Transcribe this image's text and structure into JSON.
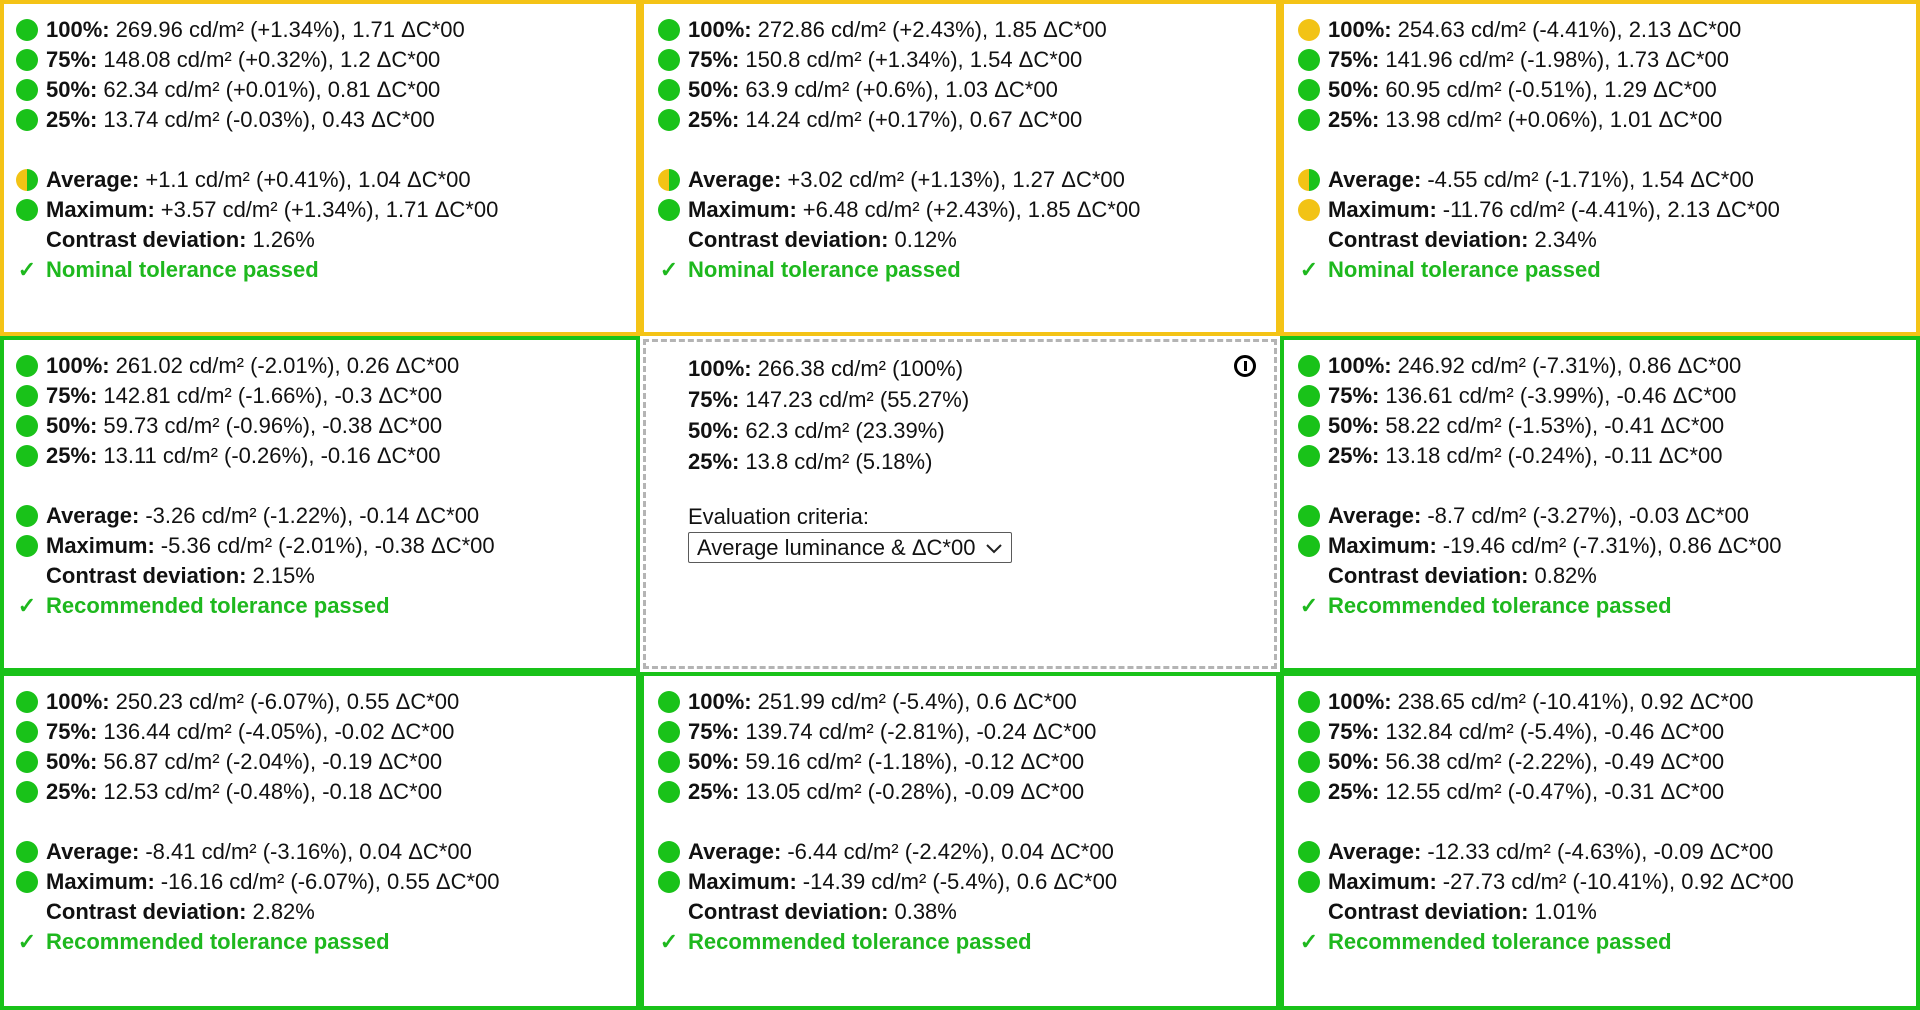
{
  "colors": {
    "green": "#19c219",
    "yellow": "#f2c315",
    "pass_text": "#1eb81e",
    "reference_border": "#b4b4b4"
  },
  "cells": [
    {
      "status": "warn",
      "lines": [
        {
          "dot": "green",
          "label": "100%:",
          "value": "269.96 cd/m² (+1.34%), 1.71 ΔC*00"
        },
        {
          "dot": "green",
          "label": "75%:",
          "value": "148.08 cd/m² (+0.32%), 1.2 ΔC*00"
        },
        {
          "dot": "green",
          "label": "50%:",
          "value": "62.34 cd/m² (+0.01%), 0.81 ΔC*00"
        },
        {
          "dot": "green",
          "label": "25%:",
          "value": "13.74 cd/m² (-0.03%), 0.43 ΔC*00"
        }
      ],
      "average": {
        "dot": "half",
        "label": "Average:",
        "value": "+1.1 cd/m² (+0.41%), 1.04 ΔC*00"
      },
      "maximum": {
        "dot": "green",
        "label": "Maximum:",
        "value": "+3.57 cd/m² (+1.34%), 1.71 ΔC*00"
      },
      "contrast": {
        "label": "Contrast deviation:",
        "value": "1.26%"
      },
      "result": "Nominal tolerance passed"
    },
    {
      "status": "warn",
      "lines": [
        {
          "dot": "green",
          "label": "100%:",
          "value": "272.86 cd/m² (+2.43%), 1.85 ΔC*00"
        },
        {
          "dot": "green",
          "label": "75%:",
          "value": "150.8 cd/m² (+1.34%), 1.54 ΔC*00"
        },
        {
          "dot": "green",
          "label": "50%:",
          "value": "63.9 cd/m² (+0.6%), 1.03 ΔC*00"
        },
        {
          "dot": "green",
          "label": "25%:",
          "value": "14.24 cd/m² (+0.17%), 0.67 ΔC*00"
        }
      ],
      "average": {
        "dot": "half",
        "label": "Average:",
        "value": "+3.02 cd/m² (+1.13%), 1.27 ΔC*00"
      },
      "maximum": {
        "dot": "green",
        "label": "Maximum:",
        "value": "+6.48 cd/m² (+2.43%), 1.85 ΔC*00"
      },
      "contrast": {
        "label": "Contrast deviation:",
        "value": "0.12%"
      },
      "result": "Nominal tolerance passed"
    },
    {
      "status": "warn",
      "lines": [
        {
          "dot": "yellow",
          "label": "100%:",
          "value": "254.63 cd/m² (-4.41%), 2.13 ΔC*00"
        },
        {
          "dot": "green",
          "label": "75%:",
          "value": "141.96 cd/m² (-1.98%), 1.73 ΔC*00"
        },
        {
          "dot": "green",
          "label": "50%:",
          "value": "60.95 cd/m² (-0.51%), 1.29 ΔC*00"
        },
        {
          "dot": "green",
          "label": "25%:",
          "value": "13.98 cd/m² (+0.06%), 1.01 ΔC*00"
        }
      ],
      "average": {
        "dot": "half",
        "label": "Average:",
        "value": "-4.55 cd/m² (-1.71%), 1.54 ΔC*00"
      },
      "maximum": {
        "dot": "yellow",
        "label": "Maximum:",
        "value": "-11.76 cd/m² (-4.41%), 2.13 ΔC*00"
      },
      "contrast": {
        "label": "Contrast deviation:",
        "value": "2.34%"
      },
      "result": "Nominal tolerance passed"
    },
    {
      "status": "ok",
      "lines": [
        {
          "dot": "green",
          "label": "100%:",
          "value": "261.02 cd/m² (-2.01%), 0.26 ΔC*00"
        },
        {
          "dot": "green",
          "label": "75%:",
          "value": "142.81 cd/m² (-1.66%), -0.3 ΔC*00"
        },
        {
          "dot": "green",
          "label": "50%:",
          "value": "59.73 cd/m² (-0.96%), -0.38 ΔC*00"
        },
        {
          "dot": "green",
          "label": "25%:",
          "value": "13.11 cd/m² (-0.26%), -0.16 ΔC*00"
        }
      ],
      "average": {
        "dot": "green",
        "label": "Average:",
        "value": "-3.26 cd/m² (-1.22%), -0.14 ΔC*00"
      },
      "maximum": {
        "dot": "green",
        "label": "Maximum:",
        "value": "-5.36 cd/m² (-2.01%), -0.38 ΔC*00"
      },
      "contrast": {
        "label": "Contrast deviation:",
        "value": "2.15%"
      },
      "result": "Recommended tolerance passed"
    },
    {
      "status": "reference",
      "ref_lines": [
        {
          "label": "100%:",
          "value": "266.38 cd/m² (100%)"
        },
        {
          "label": "75%:",
          "value": "147.23 cd/m² (55.27%)"
        },
        {
          "label": "50%:",
          "value": "62.3 cd/m² (23.39%)"
        },
        {
          "label": "25%:",
          "value": "13.8 cd/m² (5.18%)"
        }
      ],
      "criteria_label": "Evaluation criteria:",
      "criteria_selected": "Average luminance & ΔC*00",
      "icon": "info-circle-icon"
    },
    {
      "status": "ok",
      "lines": [
        {
          "dot": "green",
          "label": "100%:",
          "value": "246.92 cd/m² (-7.31%), 0.86 ΔC*00"
        },
        {
          "dot": "green",
          "label": "75%:",
          "value": "136.61 cd/m² (-3.99%), -0.46 ΔC*00"
        },
        {
          "dot": "green",
          "label": "50%:",
          "value": "58.22 cd/m² (-1.53%), -0.41 ΔC*00"
        },
        {
          "dot": "green",
          "label": "25%:",
          "value": "13.18 cd/m² (-0.24%), -0.11 ΔC*00"
        }
      ],
      "average": {
        "dot": "green",
        "label": "Average:",
        "value": "-8.7 cd/m² (-3.27%), -0.03 ΔC*00"
      },
      "maximum": {
        "dot": "green",
        "label": "Maximum:",
        "value": "-19.46 cd/m² (-7.31%), 0.86 ΔC*00"
      },
      "contrast": {
        "label": "Contrast deviation:",
        "value": "0.82%"
      },
      "result": "Recommended tolerance passed"
    },
    {
      "status": "ok",
      "lines": [
        {
          "dot": "green",
          "label": "100%:",
          "value": "250.23 cd/m² (-6.07%), 0.55 ΔC*00"
        },
        {
          "dot": "green",
          "label": "75%:",
          "value": "136.44 cd/m² (-4.05%), -0.02 ΔC*00"
        },
        {
          "dot": "green",
          "label": "50%:",
          "value": "56.87 cd/m² (-2.04%), -0.19 ΔC*00"
        },
        {
          "dot": "green",
          "label": "25%:",
          "value": "12.53 cd/m² (-0.48%), -0.18 ΔC*00"
        }
      ],
      "average": {
        "dot": "green",
        "label": "Average:",
        "value": "-8.41 cd/m² (-3.16%), 0.04 ΔC*00"
      },
      "maximum": {
        "dot": "green",
        "label": "Maximum:",
        "value": "-16.16 cd/m² (-6.07%), 0.55 ΔC*00"
      },
      "contrast": {
        "label": "Contrast deviation:",
        "value": "2.82%"
      },
      "result": "Recommended tolerance passed"
    },
    {
      "status": "ok",
      "lines": [
        {
          "dot": "green",
          "label": "100%:",
          "value": "251.99 cd/m² (-5.4%), 0.6 ΔC*00"
        },
        {
          "dot": "green",
          "label": "75%:",
          "value": "139.74 cd/m² (-2.81%), -0.24 ΔC*00"
        },
        {
          "dot": "green",
          "label": "50%:",
          "value": "59.16 cd/m² (-1.18%), -0.12 ΔC*00"
        },
        {
          "dot": "green",
          "label": "25%:",
          "value": "13.05 cd/m² (-0.28%), -0.09 ΔC*00"
        }
      ],
      "average": {
        "dot": "green",
        "label": "Average:",
        "value": "-6.44 cd/m² (-2.42%), 0.04 ΔC*00"
      },
      "maximum": {
        "dot": "green",
        "label": "Maximum:",
        "value": "-14.39 cd/m² (-5.4%), 0.6 ΔC*00"
      },
      "contrast": {
        "label": "Contrast deviation:",
        "value": "0.38%"
      },
      "result": "Recommended tolerance passed"
    },
    {
      "status": "ok",
      "lines": [
        {
          "dot": "green",
          "label": "100%:",
          "value": "238.65 cd/m² (-10.41%), 0.92 ΔC*00"
        },
        {
          "dot": "green",
          "label": "75%:",
          "value": "132.84 cd/m² (-5.4%), -0.46 ΔC*00"
        },
        {
          "dot": "green",
          "label": "50%:",
          "value": "56.38 cd/m² (-2.22%), -0.49 ΔC*00"
        },
        {
          "dot": "green",
          "label": "25%:",
          "value": "12.55 cd/m² (-0.47%), -0.31 ΔC*00"
        }
      ],
      "average": {
        "dot": "green",
        "label": "Average:",
        "value": "-12.33 cd/m² (-4.63%), -0.09 ΔC*00"
      },
      "maximum": {
        "dot": "green",
        "label": "Maximum:",
        "value": "-27.73 cd/m² (-10.41%), 0.92 ΔC*00"
      },
      "contrast": {
        "label": "Contrast deviation:",
        "value": "1.01%"
      },
      "result": "Recommended tolerance passed"
    }
  ]
}
